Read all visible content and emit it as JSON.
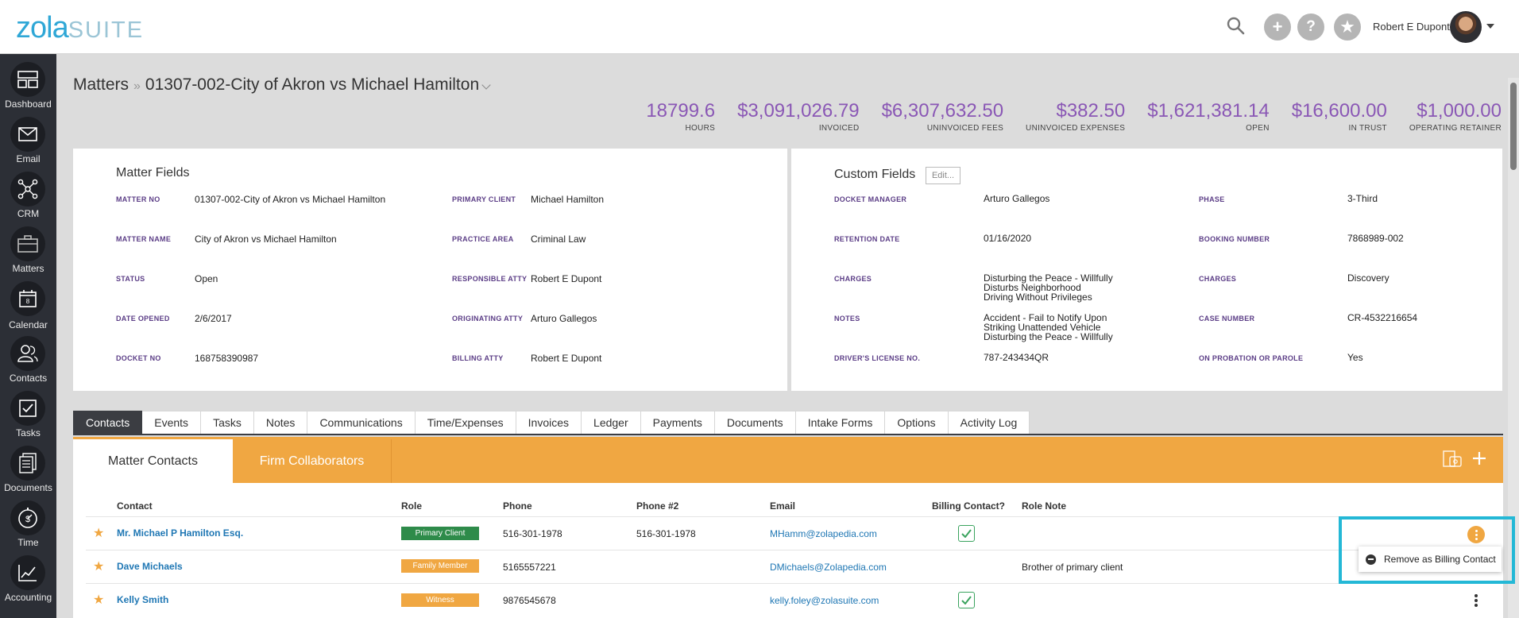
{
  "brand": {
    "name": "zola",
    "suite": "SUITE"
  },
  "topbar": {
    "user_name": "Robert E Dupont"
  },
  "sidebar": {
    "items": [
      {
        "label": "Dashboard",
        "icon": "dashboard-icon"
      },
      {
        "label": "Email",
        "icon": "envelope-icon"
      },
      {
        "label": "CRM",
        "icon": "network-icon"
      },
      {
        "label": "Matters",
        "icon": "briefcase-icon"
      },
      {
        "label": "Calendar",
        "icon": "calendar-icon"
      },
      {
        "label": "Contacts",
        "icon": "people-icon"
      },
      {
        "label": "Tasks",
        "icon": "checkbox-icon"
      },
      {
        "label": "Documents",
        "icon": "document-icon"
      },
      {
        "label": "Time",
        "icon": "stopwatch-icon"
      },
      {
        "label": "Accounting",
        "icon": "line-chart-icon"
      }
    ]
  },
  "breadcrumb": {
    "root": "Matters",
    "separator": "»",
    "current": "01307-002-City of Akron vs Michael Hamilton"
  },
  "stats": [
    {
      "value": "18799.6",
      "label": "HOURS"
    },
    {
      "value": "$3,091,026.79",
      "label": "INVOICED"
    },
    {
      "value": "$6,307,632.50",
      "label": "UNINVOICED FEES"
    },
    {
      "value": "$382.50",
      "label": "UNINVOICED EXPENSES"
    },
    {
      "value": "$1,621,381.14",
      "label": "OPEN"
    },
    {
      "value": "$16,600.00",
      "label": "IN TRUST"
    },
    {
      "value": "$1,000.00",
      "label": "OPERATING RETAINER"
    }
  ],
  "matter_fields": {
    "title": "Matter Fields",
    "matter_no_label": "MATTER NO",
    "matter_no": "01307-002-City of Akron vs Michael Hamilton",
    "matter_name_label": "MATTER NAME",
    "matter_name": "City of Akron vs Michael Hamilton",
    "status_label": "STATUS",
    "status": "Open",
    "date_opened_label": "DATE OPENED",
    "date_opened": "2/6/2017",
    "docket_no_label": "DOCKET NO",
    "docket_no": "168758390987",
    "primary_client_label": "PRIMARY CLIENT",
    "primary_client": "Michael Hamilton",
    "practice_area_label": "PRACTICE AREA",
    "practice_area": "Criminal Law",
    "responsible_atty_label": "RESPONSIBLE ATTY",
    "responsible_atty": "Robert E Dupont",
    "originating_atty_label": "ORIGINATING ATTY",
    "originating_atty": "Arturo Gallegos",
    "billing_atty_label": "BILLING ATTY",
    "billing_atty": "Robert E Dupont"
  },
  "custom_fields": {
    "title": "Custom Fields",
    "edit_label": "Edit...",
    "docket_manager_label": "DOCKET MANAGER",
    "docket_manager": "Arturo Gallegos",
    "retention_date_label": "RETENTION DATE",
    "retention_date": "01/16/2020",
    "charges_label": "CHARGES",
    "charges_1": "Disturbing the Peace - Willfully",
    "charges_2": "Disturbs Neighborhood",
    "charges_3": "Driving Without Privileges",
    "notes_label": "NOTES",
    "notes_1": "Accident - Fail to Notify Upon",
    "notes_2": "Striking Unattended Vehicle",
    "notes_3": "Disturbing the Peace - Willfully",
    "drivers_license_label": "DRIVER'S LICENSE NO.",
    "drivers_license": "787-243434QR",
    "phase_label": "PHASE",
    "phase": "3-Third",
    "booking_number_label": "BOOKING NUMBER",
    "booking_number": "7868989-002",
    "charges_right_label": "CHARGES",
    "charges_right": "Discovery",
    "case_number_label": "CASE NUMBER",
    "case_number": "CR-4532216654",
    "probation_label": "ON PROBATION OR PAROLE",
    "probation": "Yes"
  },
  "tabs": [
    "Contacts",
    "Events",
    "Tasks",
    "Notes",
    "Communications",
    "Time/Expenses",
    "Invoices",
    "Ledger",
    "Payments",
    "Documents",
    "Intake Forms",
    "Options",
    "Activity Log"
  ],
  "subtabs": {
    "matter_contacts": "Matter Contacts",
    "firm_collaborators": "Firm Collaborators"
  },
  "contacts_table": {
    "headers": {
      "contact": "Contact",
      "role": "Role",
      "phone": "Phone",
      "phone2": "Phone #2",
      "email": "Email",
      "billing": "Billing Contact?",
      "role_note": "Role Note"
    },
    "rows": [
      {
        "name": "Mr. Michael P Hamilton Esq.",
        "role": "Primary Client",
        "role_color": "#2e8b4a",
        "phone": "516-301-1978",
        "phone2": "516-301-1978",
        "email": "MHamm@zolapedia.com",
        "billing": true,
        "note": ""
      },
      {
        "name": "Dave Michaels",
        "role": "Family Member",
        "role_color": "#f0a742",
        "phone": "5165557221",
        "phone2": "",
        "email": "DMichaels@Zolapedia.com",
        "billing": false,
        "note": "Brother of primary client"
      },
      {
        "name": "Kelly Smith",
        "role": "Witness",
        "role_color": "#f0a742",
        "phone": "9876545678",
        "phone2": "",
        "email": "kelly.foley@zolasuite.com",
        "billing": true,
        "note": ""
      }
    ]
  },
  "popup": {
    "label": "Remove as Billing Contact"
  },
  "colors": {
    "accent_orange": "#f0a742",
    "stat_purple": "#8a57b5",
    "highlight": "#24b8d6",
    "sidebar": "#2c2f36"
  }
}
